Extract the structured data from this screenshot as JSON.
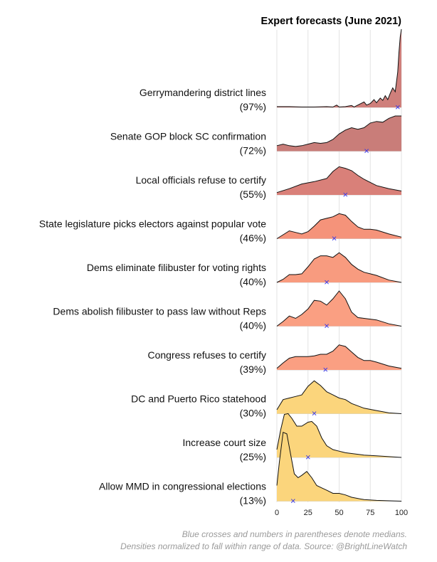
{
  "chart_data": {
    "type": "ridgeline",
    "title": "Expert forecasts (June 2021)",
    "xlim": [
      0,
      100
    ],
    "x_ticks": [
      "0",
      "25",
      "50",
      "75",
      "100"
    ],
    "x_tick_values": [
      0,
      25,
      50,
      75,
      100
    ],
    "grid": true,
    "median_marker": "×",
    "median_color": "#3a3ae8",
    "caption_line1": "Blue crosses and numbers in parentheses denote medians.",
    "caption_line2": "Densities normalized to fall within range of data. Source: @BrightLineWatch",
    "series": [
      {
        "name": "Gerrymandering district lines",
        "median_label": "(97%)",
        "median": 97,
        "color": "#cf7f7b",
        "density": [
          [
            0,
            0.01
          ],
          [
            10,
            0.01
          ],
          [
            20,
            0.005
          ],
          [
            30,
            0.005
          ],
          [
            40,
            0.01
          ],
          [
            45,
            0.005
          ],
          [
            48,
            0.03
          ],
          [
            50,
            0.005
          ],
          [
            55,
            0.01
          ],
          [
            60,
            0.025
          ],
          [
            62,
            0.005
          ],
          [
            65,
            0.03
          ],
          [
            70,
            0.07
          ],
          [
            72,
            0.03
          ],
          [
            75,
            0.05
          ],
          [
            78,
            0.1
          ],
          [
            80,
            0.06
          ],
          [
            83,
            0.12
          ],
          [
            85,
            0.09
          ],
          [
            87,
            0.15
          ],
          [
            89,
            0.1
          ],
          [
            91,
            0.18
          ],
          [
            93,
            0.25
          ],
          [
            95,
            0.2
          ],
          [
            97,
            0.45
          ],
          [
            98,
            0.7
          ],
          [
            99,
            0.9
          ],
          [
            100,
            1.0
          ]
        ]
      },
      {
        "name": "Senate GOP block SC confirmation",
        "median_label": "(72%)",
        "median": 72,
        "color": "#c97d79",
        "density": [
          [
            0,
            0.07
          ],
          [
            5,
            0.09
          ],
          [
            10,
            0.07
          ],
          [
            15,
            0.06
          ],
          [
            20,
            0.07
          ],
          [
            25,
            0.09
          ],
          [
            30,
            0.11
          ],
          [
            35,
            0.1
          ],
          [
            40,
            0.11
          ],
          [
            45,
            0.15
          ],
          [
            50,
            0.22
          ],
          [
            55,
            0.27
          ],
          [
            60,
            0.3
          ],
          [
            65,
            0.28
          ],
          [
            70,
            0.3
          ],
          [
            75,
            0.36
          ],
          [
            80,
            0.38
          ],
          [
            85,
            0.37
          ],
          [
            90,
            0.42
          ],
          [
            95,
            0.45
          ],
          [
            100,
            0.45
          ]
        ]
      },
      {
        "name": "Local officials refuse to certify",
        "median_label": "(55%)",
        "median": 55,
        "color": "#d98079",
        "density": [
          [
            0,
            0.03
          ],
          [
            10,
            0.08
          ],
          [
            20,
            0.14
          ],
          [
            30,
            0.17
          ],
          [
            40,
            0.21
          ],
          [
            45,
            0.3
          ],
          [
            50,
            0.36
          ],
          [
            55,
            0.34
          ],
          [
            60,
            0.31
          ],
          [
            65,
            0.25
          ],
          [
            70,
            0.2
          ],
          [
            80,
            0.12
          ],
          [
            90,
            0.08
          ],
          [
            100,
            0.05
          ]
        ]
      },
      {
        "name": "State legislature picks electors against popular vote",
        "median_label": "(46%)",
        "median": 46,
        "color": "#f5937a",
        "density": [
          [
            0,
            0.0
          ],
          [
            5,
            0.05
          ],
          [
            10,
            0.1
          ],
          [
            15,
            0.08
          ],
          [
            20,
            0.06
          ],
          [
            25,
            0.09
          ],
          [
            30,
            0.16
          ],
          [
            35,
            0.24
          ],
          [
            40,
            0.26
          ],
          [
            45,
            0.28
          ],
          [
            50,
            0.32
          ],
          [
            55,
            0.3
          ],
          [
            60,
            0.22
          ],
          [
            65,
            0.15
          ],
          [
            70,
            0.12
          ],
          [
            75,
            0.12
          ],
          [
            80,
            0.11
          ],
          [
            90,
            0.06
          ],
          [
            100,
            0.02
          ]
        ]
      },
      {
        "name": "Dems eliminate filibuster for voting rights",
        "median_label": "(40%)",
        "median": 40,
        "color": "#f89b7f",
        "density": [
          [
            0,
            0.0
          ],
          [
            5,
            0.04
          ],
          [
            10,
            0.1
          ],
          [
            15,
            0.1
          ],
          [
            20,
            0.11
          ],
          [
            25,
            0.2
          ],
          [
            30,
            0.3
          ],
          [
            35,
            0.34
          ],
          [
            40,
            0.34
          ],
          [
            45,
            0.32
          ],
          [
            50,
            0.38
          ],
          [
            55,
            0.32
          ],
          [
            60,
            0.23
          ],
          [
            65,
            0.17
          ],
          [
            70,
            0.13
          ],
          [
            75,
            0.11
          ],
          [
            80,
            0.09
          ],
          [
            90,
            0.03
          ],
          [
            100,
            0.0
          ]
        ]
      },
      {
        "name": "Dems abolish filibuster to pass law without Reps",
        "median_label": "(40%)",
        "median": 40,
        "color": "#fa9f82",
        "density": [
          [
            0,
            0.0
          ],
          [
            5,
            0.06
          ],
          [
            10,
            0.13
          ],
          [
            15,
            0.1
          ],
          [
            20,
            0.15
          ],
          [
            25,
            0.22
          ],
          [
            30,
            0.33
          ],
          [
            35,
            0.32
          ],
          [
            40,
            0.27
          ],
          [
            45,
            0.35
          ],
          [
            50,
            0.45
          ],
          [
            55,
            0.35
          ],
          [
            60,
            0.18
          ],
          [
            65,
            0.11
          ],
          [
            70,
            0.1
          ],
          [
            80,
            0.08
          ],
          [
            90,
            0.03
          ],
          [
            100,
            0.0
          ]
        ]
      },
      {
        "name": "Congress refuses to certify",
        "median_label": "(39%)",
        "median": 39,
        "color": "#fa9f82",
        "density": [
          [
            0,
            0.02
          ],
          [
            5,
            0.09
          ],
          [
            10,
            0.15
          ],
          [
            15,
            0.17
          ],
          [
            20,
            0.17
          ],
          [
            25,
            0.17
          ],
          [
            30,
            0.18
          ],
          [
            35,
            0.2
          ],
          [
            40,
            0.2
          ],
          [
            45,
            0.24
          ],
          [
            50,
            0.32
          ],
          [
            55,
            0.3
          ],
          [
            60,
            0.23
          ],
          [
            65,
            0.16
          ],
          [
            70,
            0.12
          ],
          [
            75,
            0.12
          ],
          [
            80,
            0.1
          ],
          [
            90,
            0.05
          ],
          [
            100,
            0.02
          ]
        ]
      },
      {
        "name": "DC and Puerto Rico statehood",
        "median_label": "(30%)",
        "median": 30,
        "color": "#fbd57c",
        "density": [
          [
            0,
            0.05
          ],
          [
            5,
            0.18
          ],
          [
            10,
            0.2
          ],
          [
            15,
            0.22
          ],
          [
            20,
            0.24
          ],
          [
            25,
            0.35
          ],
          [
            30,
            0.42
          ],
          [
            35,
            0.36
          ],
          [
            40,
            0.28
          ],
          [
            45,
            0.24
          ],
          [
            50,
            0.2
          ],
          [
            55,
            0.18
          ],
          [
            60,
            0.13
          ],
          [
            70,
            0.07
          ],
          [
            80,
            0.04
          ],
          [
            90,
            0.01
          ],
          [
            100,
            0.0
          ]
        ]
      },
      {
        "name": "Increase court size",
        "median_label": "(25%)",
        "median": 25,
        "color": "#fbd57c",
        "density": [
          [
            0,
            0.1
          ],
          [
            3,
            0.35
          ],
          [
            6,
            0.55
          ],
          [
            9,
            0.56
          ],
          [
            12,
            0.5
          ],
          [
            16,
            0.4
          ],
          [
            20,
            0.4
          ],
          [
            25,
            0.45
          ],
          [
            28,
            0.46
          ],
          [
            32,
            0.4
          ],
          [
            36,
            0.25
          ],
          [
            40,
            0.15
          ],
          [
            45,
            0.1
          ],
          [
            50,
            0.08
          ],
          [
            55,
            0.06
          ],
          [
            60,
            0.05
          ],
          [
            70,
            0.03
          ],
          [
            80,
            0.02
          ],
          [
            100,
            0.0
          ]
        ]
      },
      {
        "name": "Allow MMD in congressional elections",
        "median_label": "(13%)",
        "median": 13,
        "color": "#fbd57c",
        "density": [
          [
            0,
            0.2
          ],
          [
            2,
            0.5
          ],
          [
            5,
            0.88
          ],
          [
            8,
            0.86
          ],
          [
            11,
            0.6
          ],
          [
            14,
            0.35
          ],
          [
            17,
            0.3
          ],
          [
            20,
            0.33
          ],
          [
            24,
            0.38
          ],
          [
            28,
            0.3
          ],
          [
            32,
            0.2
          ],
          [
            36,
            0.17
          ],
          [
            40,
            0.14
          ],
          [
            45,
            0.1
          ],
          [
            50,
            0.1
          ],
          [
            55,
            0.08
          ],
          [
            60,
            0.05
          ],
          [
            70,
            0.02
          ],
          [
            80,
            0.01
          ],
          [
            100,
            0.0
          ]
        ]
      }
    ]
  }
}
